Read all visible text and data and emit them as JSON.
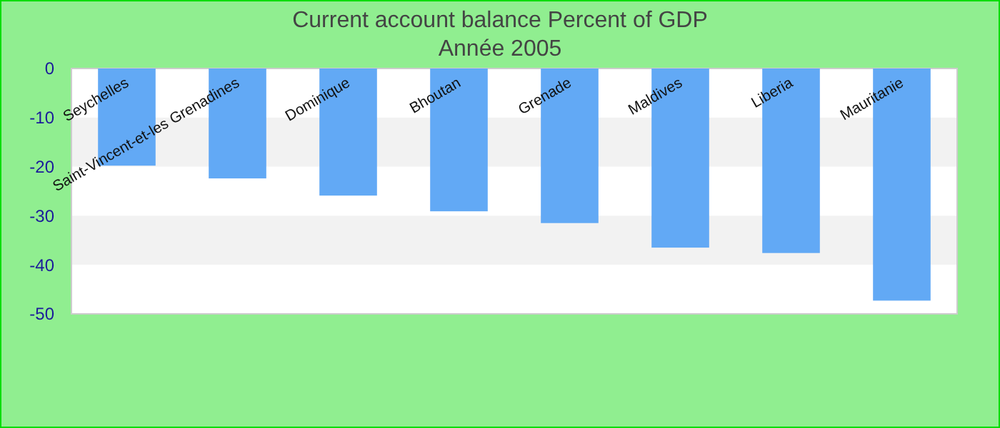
{
  "chart_data": {
    "type": "bar",
    "title": "Current account balance  Percent of GDP",
    "subtitle": "Année 2005",
    "categories": [
      "Seychelles",
      "Saint-Vincent-et-les Grenadines",
      "Dominique",
      "Bhoutan",
      "Grenade",
      "Maldives",
      "Liberia",
      "Mauritanie"
    ],
    "values": [
      -19.8,
      -22.4,
      -25.9,
      -29.1,
      -31.5,
      -36.5,
      -37.6,
      -47.3
    ],
    "color": "#62a9f5",
    "ylim": [
      -50,
      0
    ],
    "yticks": [
      -50,
      -40,
      -30,
      -20,
      -10,
      0
    ],
    "bands": [
      {
        "axis": "y",
        "from": -20,
        "to": -10,
        "color": "#f2f2f2"
      },
      {
        "axis": "y",
        "from": -40,
        "to": -30,
        "color": "#f2f2f2"
      }
    ],
    "grid": false
  }
}
